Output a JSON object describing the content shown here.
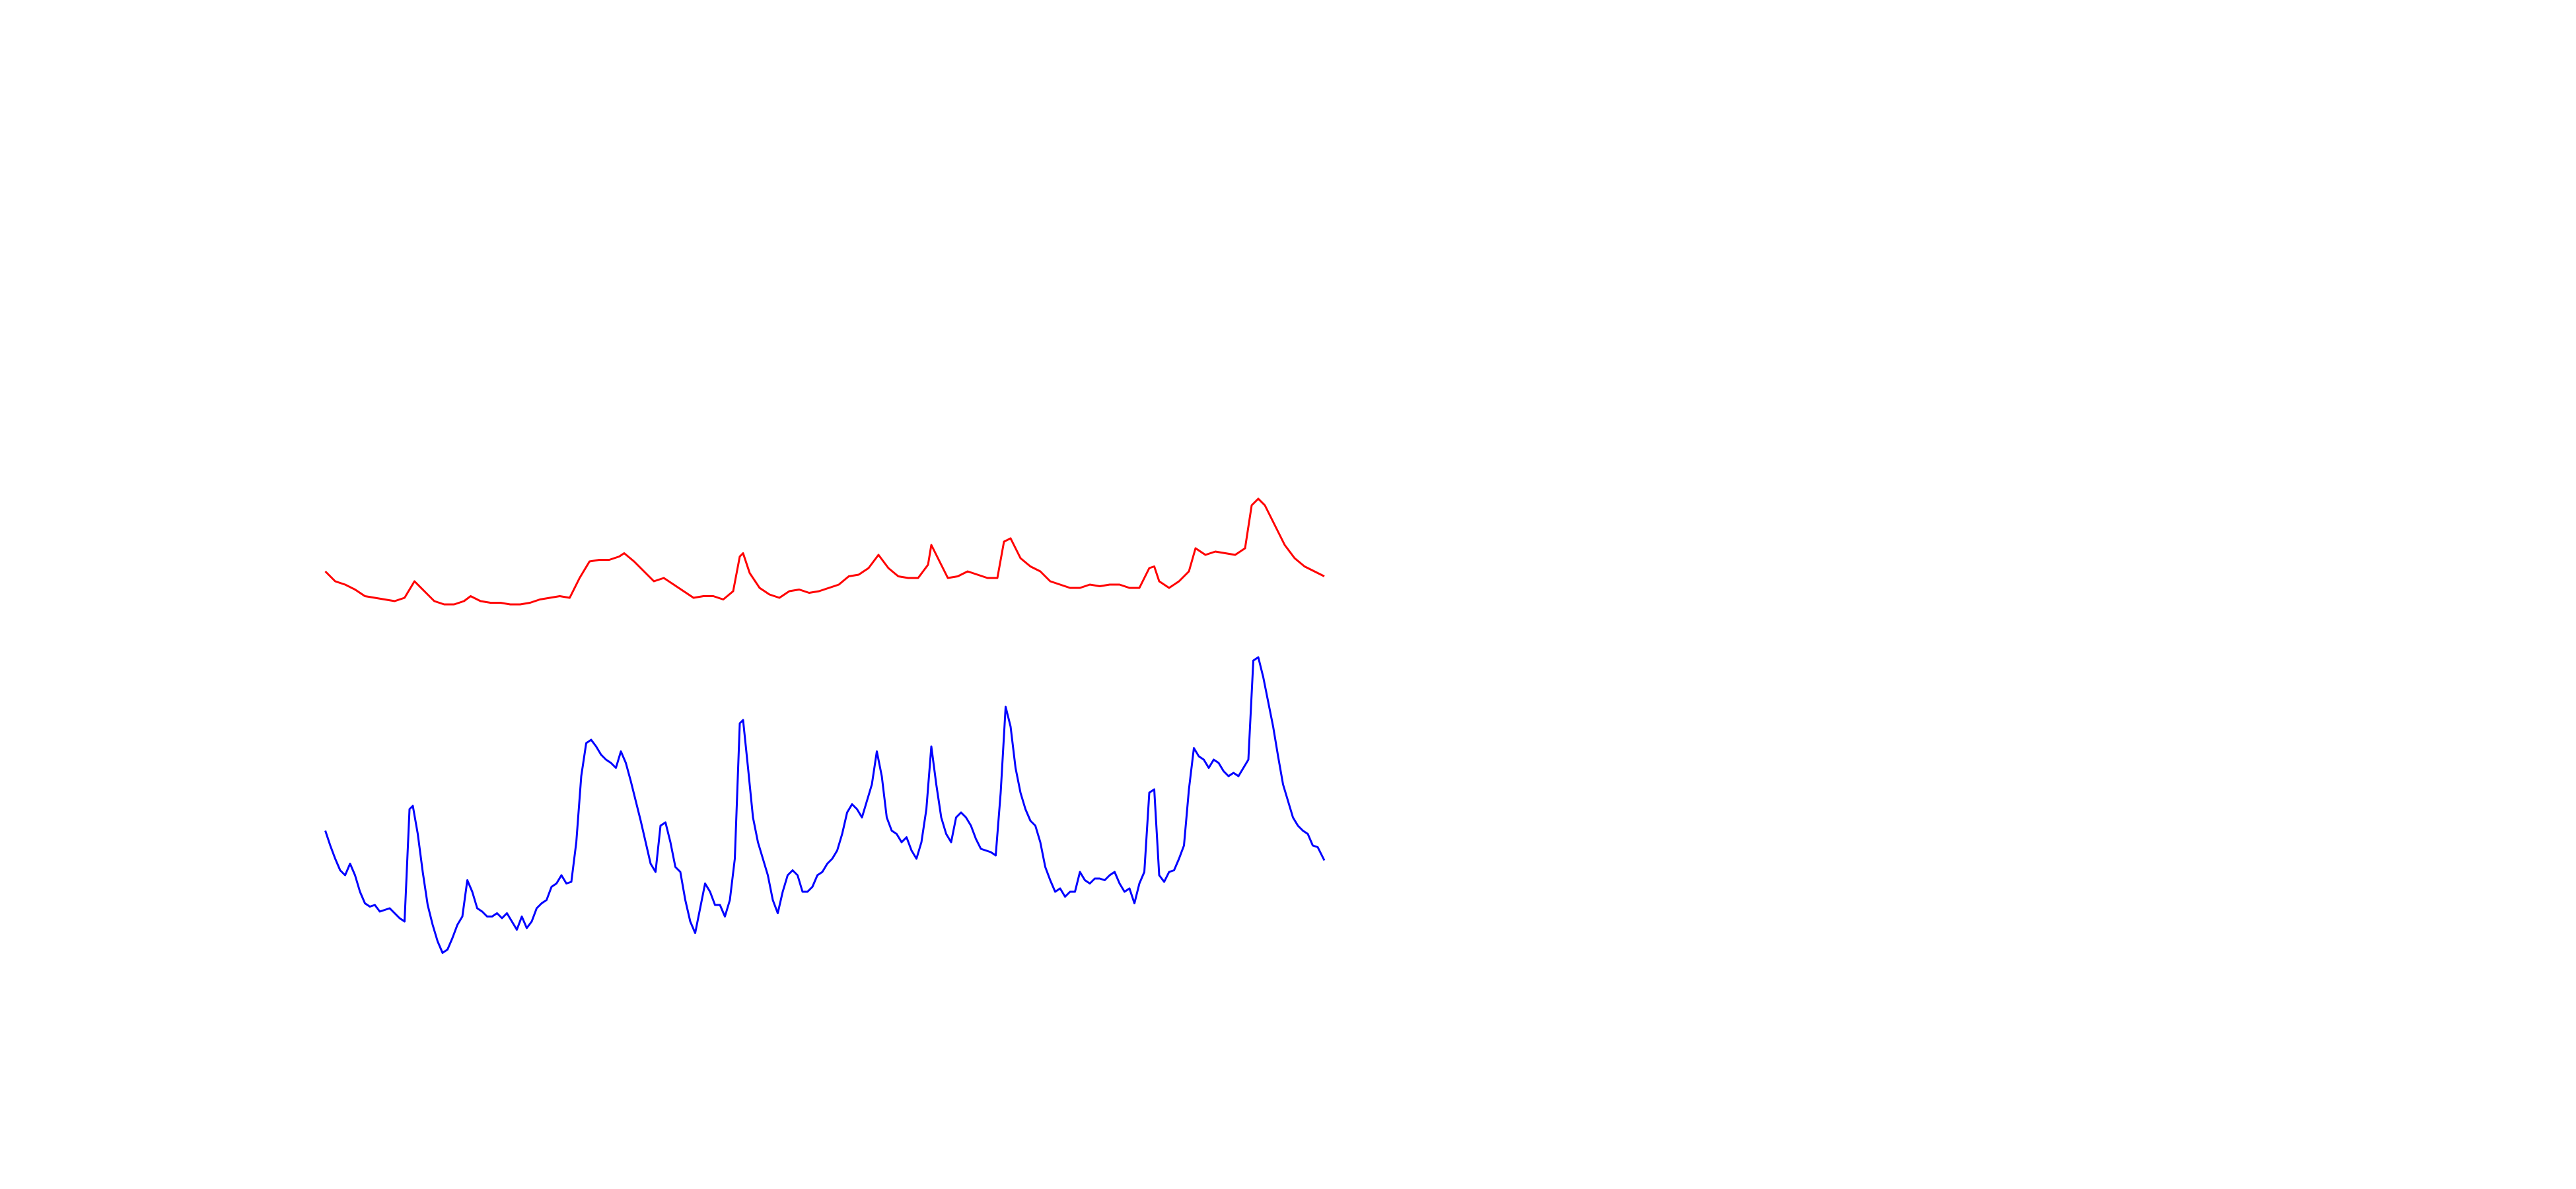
{
  "chart_data": {
    "type": "line",
    "xlim": [
      0,
      605
    ],
    "ylim": [
      720,
      0
    ],
    "series": [
      {
        "color": "#ff0000",
        "x": [
          0,
          6,
          12,
          18,
          24,
          30,
          36,
          42,
          48,
          54,
          60,
          66,
          72,
          78,
          84,
          88,
          94,
          100,
          106,
          112,
          118,
          124,
          130,
          136,
          142,
          148,
          154,
          160,
          166,
          172,
          178,
          181,
          187,
          193,
          199,
          205,
          211,
          217,
          223,
          229,
          235,
          241,
          247,
          251,
          253,
          257,
          263,
          269,
          275,
          281,
          287,
          293,
          299,
          305,
          311,
          317,
          323,
          329,
          335,
          341,
          347,
          353,
          359,
          365,
          367,
          371,
          377,
          383,
          389,
          395,
          401,
          407,
          411,
          415,
          421,
          427,
          433,
          439,
          445,
          451,
          457,
          463,
          469,
          475,
          481,
          487,
          493,
          499,
          502,
          505,
          511,
          517,
          523,
          527,
          533,
          539,
          545,
          551,
          557,
          561,
          565,
          569,
          575,
          581,
          587,
          593,
          599,
          605
        ],
        "values": [
          346,
          352,
          354,
          357,
          361,
          362,
          363,
          364,
          362,
          352,
          358,
          364,
          366,
          366,
          364,
          361,
          364,
          365,
          365,
          366,
          366,
          365,
          363,
          362,
          361,
          362,
          350,
          340,
          339,
          339,
          337,
          335,
          340,
          346,
          352,
          350,
          354,
          358,
          362,
          361,
          361,
          363,
          358,
          337,
          335,
          347,
          356,
          360,
          362,
          358,
          357,
          359,
          358,
          356,
          354,
          349,
          348,
          344,
          336,
          344,
          349,
          350,
          350,
          342,
          330,
          338,
          350,
          349,
          346,
          348,
          350,
          350,
          328,
          326,
          338,
          343,
          346,
          352,
          354,
          356,
          356,
          354,
          355,
          354,
          354,
          356,
          356,
          344,
          343,
          352,
          356,
          352,
          346,
          332,
          336,
          334,
          335,
          336,
          332,
          306,
          302,
          306,
          318,
          330,
          338,
          343,
          346,
          349
        ]
      },
      {
        "color": "#0000ff",
        "x": [
          0,
          3,
          6,
          9,
          12,
          15,
          18,
          21,
          24,
          27,
          30,
          33,
          36,
          39,
          42,
          45,
          48,
          51,
          53,
          56,
          59,
          62,
          65,
          68,
          71,
          74,
          77,
          80,
          83,
          86,
          89,
          92,
          95,
          98,
          101,
          104,
          107,
          110,
          113,
          116,
          119,
          122,
          125,
          128,
          131,
          134,
          137,
          140,
          143,
          146,
          149,
          152,
          155,
          158,
          161,
          164,
          167,
          170,
          173,
          176,
          179,
          182,
          185,
          188,
          191,
          194,
          197,
          200,
          203,
          206,
          209,
          212,
          215,
          218,
          221,
          224,
          227,
          230,
          233,
          236,
          239,
          242,
          245,
          248,
          251,
          253,
          256,
          259,
          262,
          265,
          268,
          271,
          274,
          277,
          280,
          283,
          286,
          289,
          292,
          295,
          298,
          301,
          304,
          307,
          310,
          313,
          316,
          319,
          322,
          325,
          328,
          331,
          334,
          337,
          340,
          343,
          346,
          349,
          352,
          355,
          358,
          361,
          364,
          367,
          370,
          373,
          376,
          379,
          382,
          385,
          388,
          391,
          394,
          397,
          400,
          403,
          406,
          409,
          412,
          415,
          418,
          421,
          424,
          427,
          430,
          433,
          436,
          439,
          442,
          445,
          448,
          451,
          454,
          457,
          460,
          463,
          466,
          469,
          472,
          475,
          478,
          481,
          484,
          487,
          490,
          493,
          496,
          499,
          502,
          505,
          508,
          511,
          514,
          517,
          520,
          523,
          526,
          529,
          532,
          535,
          538,
          541,
          544,
          547,
          550,
          553,
          556,
          559,
          562,
          565,
          568,
          571,
          574,
          577,
          580,
          583,
          586,
          589,
          592,
          595,
          598,
          601,
          605
        ],
        "values": [
          503,
          512,
          520,
          527,
          530,
          523,
          530,
          540,
          547,
          549,
          548,
          552,
          551,
          550,
          553,
          556,
          558,
          490,
          488,
          505,
          528,
          548,
          560,
          570,
          577,
          575,
          568,
          560,
          555,
          533,
          540,
          550,
          552,
          555,
          555,
          553,
          556,
          553,
          558,
          563,
          555,
          562,
          558,
          550,
          547,
          545,
          537,
          535,
          530,
          535,
          534,
          510,
          470,
          450,
          448,
          452,
          457,
          460,
          462,
          465,
          455,
          462,
          473,
          485,
          497,
          510,
          523,
          528,
          500,
          498,
          510,
          525,
          528,
          545,
          558,
          565,
          550,
          535,
          540,
          548,
          548,
          555,
          545,
          520,
          438,
          436,
          465,
          495,
          510,
          520,
          530,
          545,
          553,
          540,
          530,
          527,
          530,
          540,
          540,
          537,
          530,
          528,
          523,
          520,
          515,
          505,
          492,
          487,
          490,
          495,
          485,
          475,
          455,
          470,
          495,
          503,
          505,
          510,
          507,
          515,
          520,
          510,
          490,
          452,
          475,
          495,
          505,
          510,
          495,
          492,
          495,
          500,
          508,
          514,
          515,
          516,
          518,
          480,
          428,
          440,
          465,
          480,
          490,
          497,
          500,
          510,
          525,
          533,
          540,
          538,
          543,
          540,
          540,
          528,
          533,
          535,
          532,
          532,
          533,
          530,
          528,
          535,
          540,
          538,
          547,
          535,
          528,
          480,
          478,
          530,
          534,
          528,
          527,
          520,
          512,
          478,
          453,
          458,
          460,
          465,
          460,
          462,
          467,
          470,
          468,
          470,
          465,
          460,
          400,
          398,
          410,
          425,
          440,
          458,
          475,
          485,
          495,
          500,
          503,
          505,
          512,
          513,
          521
        ]
      }
    ]
  }
}
